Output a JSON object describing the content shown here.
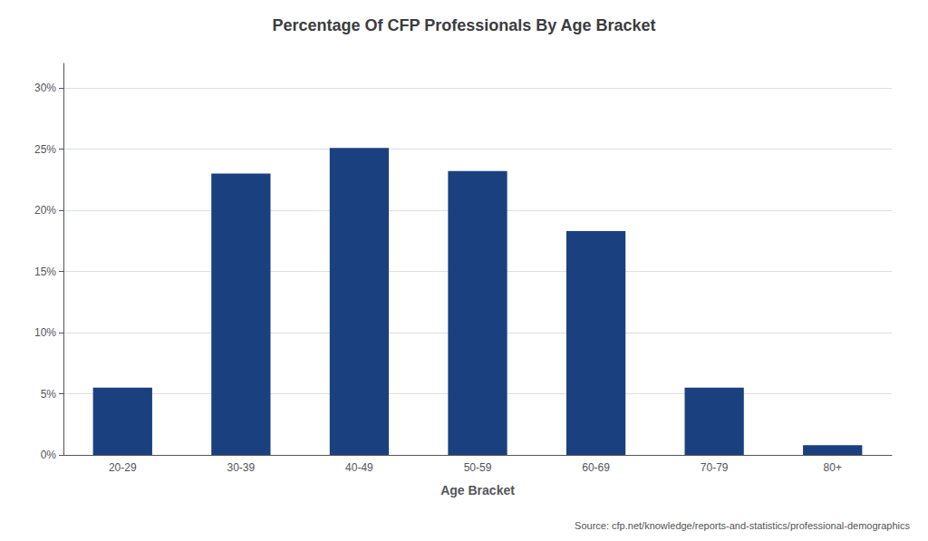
{
  "chart_data": {
    "type": "bar",
    "title": "Percentage Of CFP Professionals By Age Bracket",
    "xlabel": "Age Bracket",
    "categories": [
      "20-29",
      "30-39",
      "40-49",
      "50-59",
      "60-69",
      "70-79",
      "80+"
    ],
    "values": [
      5.5,
      23.0,
      25.1,
      23.2,
      18.3,
      5.5,
      0.8
    ],
    "color": "#1b4080",
    "ylim": [
      0,
      32
    ],
    "yticks": [
      {
        "value": 0,
        "label": "0%"
      },
      {
        "value": 5,
        "label": "5%"
      },
      {
        "value": 10,
        "label": "10%"
      },
      {
        "value": 15,
        "label": "15%"
      },
      {
        "value": 20,
        "label": "20%"
      },
      {
        "value": 25,
        "label": "25%"
      },
      {
        "value": 30,
        "label": "30%"
      }
    ],
    "grid": true,
    "annotations": [
      "Source: cfp.net/knowledge/reports-and-statistics/professional-demographics"
    ]
  }
}
